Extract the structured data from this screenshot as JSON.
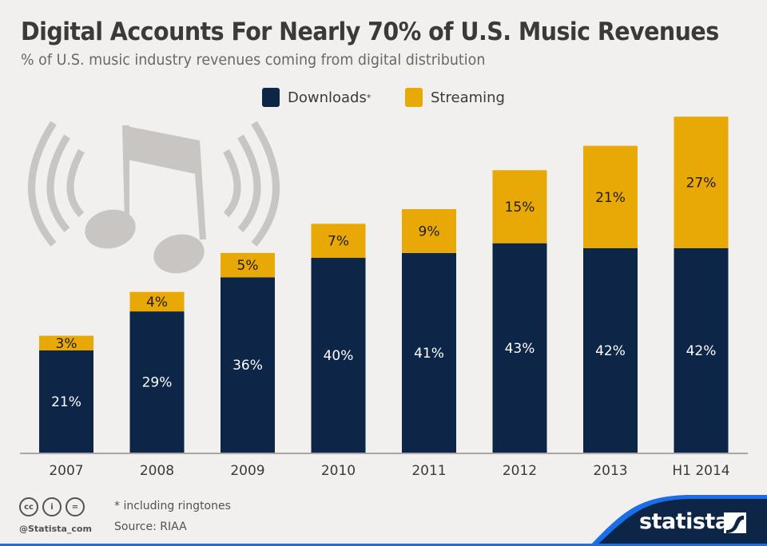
{
  "header": {
    "title": "Digital Accounts For Nearly 70% of U.S. Music Revenues",
    "subtitle": "% of U.S. music industry revenues coming from digital distribution"
  },
  "legend": {
    "downloads_label": "Downloads",
    "downloads_mark": "*",
    "streaming_label": "Streaming"
  },
  "colors": {
    "downloads": "#0d2547",
    "streaming": "#e8a805",
    "background": "#f1f0ef",
    "footer_band": "#0d2547",
    "footer_accent": "#1a6ee8",
    "decoration": "#c8c5c2"
  },
  "footer": {
    "note": "* including ringtones",
    "source": "Source: RIAA",
    "handle": "@Statista_com",
    "brand": "statista",
    "license_icons": [
      "cc",
      "i",
      "="
    ]
  },
  "decoration": {
    "icon": "music-note-broadcast-icon"
  },
  "chart_data": {
    "type": "bar",
    "stacked": true,
    "title": "Digital Accounts For Nearly 70% of U.S. Music Revenues",
    "subtitle": "% of U.S. music industry revenues coming from digital distribution",
    "xlabel": "",
    "ylabel": "",
    "ylim": [
      0,
      70
    ],
    "grid": false,
    "legend_position": "top-center",
    "categories": [
      "2007",
      "2008",
      "2009",
      "2010",
      "2011",
      "2012",
      "2013",
      "H1 2014"
    ],
    "series": [
      {
        "name": "Downloads*",
        "values": [
          21,
          29,
          36,
          40,
          41,
          43,
          42,
          42
        ]
      },
      {
        "name": "Streaming",
        "values": [
          3,
          4,
          5,
          7,
          9,
          15,
          21,
          27
        ]
      }
    ]
  }
}
